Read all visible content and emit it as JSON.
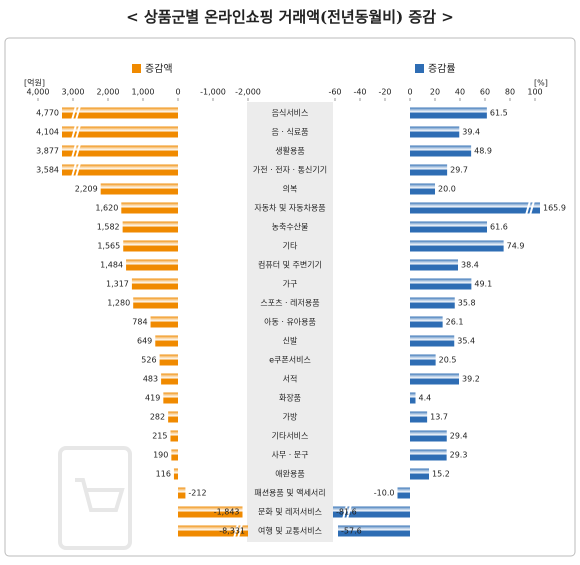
{
  "chart_data": {
    "type": "butterfly",
    "title": "< 상품군별 온라인쇼핑 거래액(전년동월비) 증감 >",
    "categories": [
      "음식서비스",
      "음 · 식료품",
      "생활용품",
      "가전 · 전자 · 통신기기",
      "의복",
      "자동차 및 자동차용품",
      "농축수산물",
      "기타",
      "컴퓨터 및 주변기기",
      "가구",
      "스포츠 · 레저용품",
      "아동 · 유아용품",
      "신발",
      "e쿠폰서비스",
      "서적",
      "화장품",
      "가방",
      "기타서비스",
      "사무 · 문구",
      "애완용품",
      "패션용품 및 액세서리",
      "문화 및 레저서비스",
      "여행 및 교통서비스"
    ],
    "xlim": [
      4000,
      -2000
    ],
    "xticks": [
      {
        "value": 4000,
        "label": "4,000"
      },
      {
        "value": 3000,
        "label": "3,000"
      },
      {
        "value": 2000,
        "label": "2,000"
      },
      {
        "value": 1000,
        "label": "1,000"
      },
      0,
      {
        "value": -1000,
        "label": "-1,000"
      },
      {
        "value": -2000,
        "label": "-2,000"
      }
    ],
    "xlabel": "[억원]",
    "x2lim": [
      -60,
      100
    ],
    "x2ticks": [
      -60,
      -40,
      -20,
      0,
      20,
      40,
      60,
      80,
      100
    ],
    "x2label": "[%]",
    "series": [
      {
        "name": "증감액",
        "color": "#f08a00",
        "axis": "x",
        "values": [
          4770,
          4104,
          3877,
          3584,
          2209,
          1620,
          1582,
          1565,
          1484,
          1317,
          1280,
          784,
          649,
          526,
          483,
          419,
          282,
          215,
          190,
          116,
          -212,
          -1843,
          -8331
        ],
        "value_labels": [
          "4,770",
          "4,104",
          "3,877",
          "3,584",
          "2,209",
          "1,620",
          "1,582",
          "1,565",
          "1,484",
          "1,317",
          "1,280",
          "784",
          "649",
          "526",
          "483",
          "419",
          "282",
          "215",
          "190",
          "116",
          "-212",
          "-1,843",
          "-8,331"
        ]
      },
      {
        "name": "증감률",
        "color": "#2e6db4",
        "axis": "x2",
        "values": [
          61.5,
          39.4,
          48.9,
          29.7,
          20.0,
          165.9,
          61.6,
          74.9,
          38.4,
          49.1,
          35.8,
          26.1,
          35.4,
          20.5,
          39.2,
          4.4,
          13.7,
          29.4,
          29.3,
          15.2,
          -10.0,
          -81.6,
          -57.6
        ],
        "value_labels": [
          "61.5",
          "39.4",
          "48.9",
          "29.7",
          "20.0",
          "165.9",
          "61.6",
          "74.9",
          "38.4",
          "49.1",
          "35.8",
          "26.1",
          "35.4",
          "20.5",
          "39.2",
          "4.4",
          "13.7",
          "29.4",
          "29.3",
          "15.2",
          "-10.0",
          "-81.6",
          "-57.6"
        ]
      }
    ]
  }
}
